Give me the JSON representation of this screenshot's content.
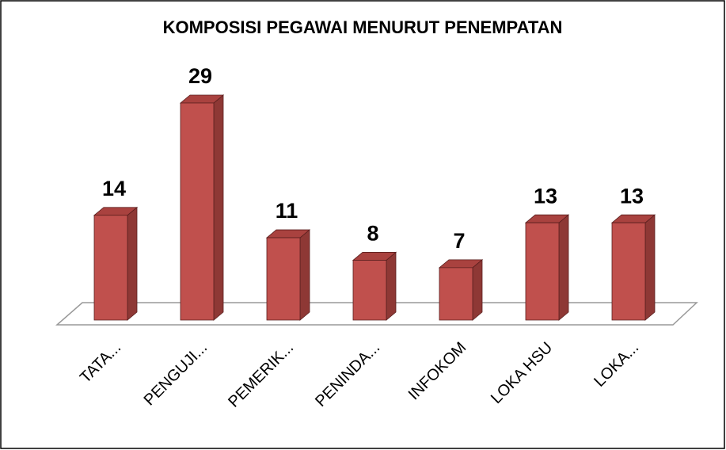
{
  "chart_data": {
    "type": "bar3d",
    "title": "KOMPOSISI PEGAWAI MENURUT PENEMPATAN",
    "categories": [
      "TATA...",
      "PENGUJI...",
      "PEMERIK...",
      "PENINDA...",
      "INFOKOM",
      "LOKA HSU",
      "LOKA..."
    ],
    "values": [
      14,
      29,
      11,
      8,
      7,
      13,
      13
    ],
    "color": "#c0504d"
  }
}
